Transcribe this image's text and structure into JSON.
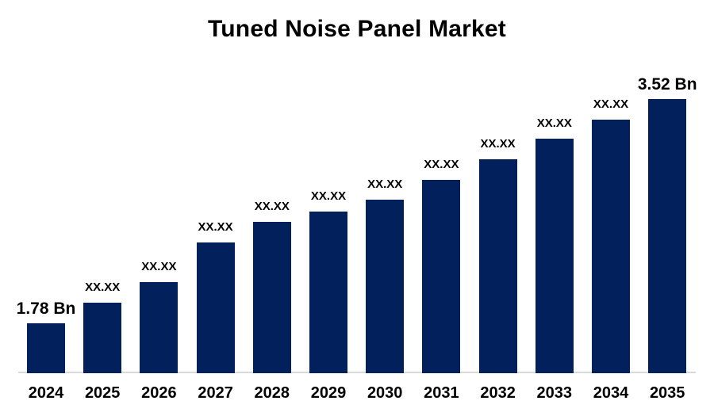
{
  "chart_data": {
    "type": "bar",
    "title": "Tuned Noise Panel Market",
    "categories": [
      "2024",
      "2025",
      "2026",
      "2027",
      "2028",
      "2029",
      "2030",
      "2031",
      "2032",
      "2033",
      "2034",
      "2035"
    ],
    "value_labels": [
      "1.78 Bn",
      "XX.XX",
      "XX.XX",
      "XX.XX",
      "XX.XX",
      "XX.XX",
      "XX.XX",
      "XX.XX",
      "XX.XX",
      "XX.XX",
      "XX.XX",
      "3.52 Bn"
    ],
    "values_bn_est": [
      1.78,
      1.94,
      2.1,
      2.41,
      2.57,
      2.65,
      2.74,
      2.89,
      3.05,
      3.21,
      3.36,
      3.52
    ],
    "xlabel": "",
    "ylabel": "",
    "legend": "none",
    "grid": "off",
    "colors": {
      "bar_fill": "#02215C",
      "axis_line": "#D9D9D9",
      "text": "#000000",
      "background": "#FFFFFF"
    }
  }
}
